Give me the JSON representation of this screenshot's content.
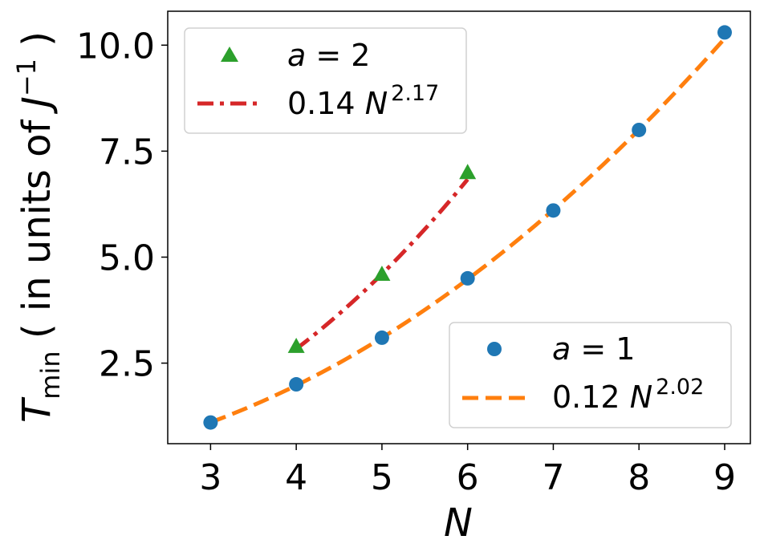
{
  "chart_data": {
    "type": "scatter",
    "xlabel": "N",
    "ylabel": {
      "symbol": "T",
      "subscript": "min",
      "text_before": " ( in units of ",
      "unit_symbol": "J",
      "unit_exponent": "−1",
      "text_after": " )"
    },
    "xlim": [
      2.5,
      9.3
    ],
    "ylim": [
      0.6,
      10.8
    ],
    "xticks": [
      3,
      4,
      5,
      6,
      7,
      8,
      9
    ],
    "xtick_labels": [
      "3",
      "4",
      "5",
      "6",
      "7",
      "8",
      "9"
    ],
    "yticks": [
      2.5,
      5.0,
      7.5,
      10.0
    ],
    "ytick_labels": [
      "2.5",
      "5.0",
      "7.5",
      "10.0"
    ],
    "grid": false,
    "series": [
      {
        "name": "a = 1",
        "legend_label": {
          "var": "a",
          "rest": " = 1"
        },
        "kind": "scatter",
        "marker": "circle",
        "color": "#1f77b4",
        "x": [
          3,
          4,
          5,
          6,
          7,
          8,
          9
        ],
        "y": [
          1.1,
          2.0,
          3.1,
          4.5,
          6.1,
          8.0,
          10.3
        ]
      },
      {
        "name": "0.12 N^2.02",
        "legend_label": {
          "coef": "0.12 ",
          "var": "N",
          "exp": "2.02"
        },
        "kind": "line",
        "style": "dashed",
        "color": "#ff7f0e",
        "coef": 0.12,
        "exponent": 2.02,
        "x_range": [
          3,
          9
        ]
      },
      {
        "name": "a = 2",
        "legend_label": {
          "var": "a",
          "rest": " = 2"
        },
        "kind": "scatter",
        "marker": "triangle",
        "color": "#2ca02c",
        "x": [
          4,
          5,
          6
        ],
        "y": [
          2.9,
          4.6,
          7.0
        ]
      },
      {
        "name": "0.14 N^2.17",
        "legend_label": {
          "coef": "0.14 ",
          "var": "N",
          "exp": "2.17"
        },
        "kind": "line",
        "style": "dashdot",
        "color": "#d62728",
        "coef": 0.14,
        "exponent": 2.17,
        "x_range": [
          4,
          6
        ]
      }
    ],
    "legends": [
      {
        "placement": "upper-left",
        "entries": [
          "a = 2",
          "0.14 N^2.17"
        ]
      },
      {
        "placement": "lower-right",
        "entries": [
          "a = 1",
          "0.12 N^2.02"
        ]
      }
    ]
  }
}
